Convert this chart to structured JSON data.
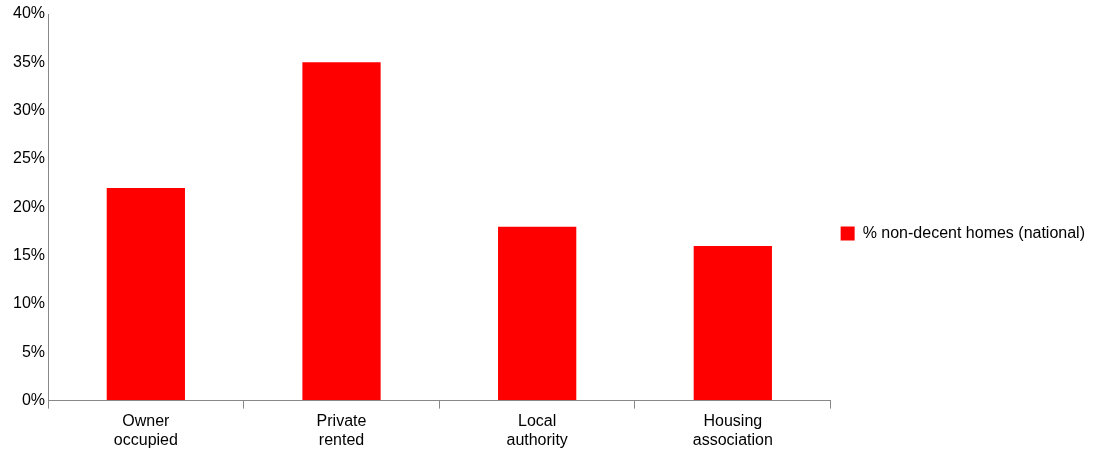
{
  "chart_data": {
    "type": "bar",
    "categories": [
      "Owner occupied",
      "Private rented",
      "Local authority",
      "Housing association"
    ],
    "series": [
      {
        "name": "% non-decent homes (national)",
        "color": "#ff0000",
        "values": [
          22,
          35,
          18,
          16
        ]
      }
    ],
    "ylim": [
      0,
      40
    ],
    "yticks": [
      {
        "value": 0,
        "label": "0%"
      },
      {
        "value": 5,
        "label": "5%"
      },
      {
        "value": 10,
        "label": "10%"
      },
      {
        "value": 15,
        "label": "15%"
      },
      {
        "value": 20,
        "label": "20%"
      },
      {
        "value": 25,
        "label": "25%"
      },
      {
        "value": 30,
        "label": "30%"
      },
      {
        "value": 35,
        "label": "35%"
      },
      {
        "value": 40,
        "label": "40%"
      }
    ],
    "grid": false,
    "legend": "right"
  }
}
